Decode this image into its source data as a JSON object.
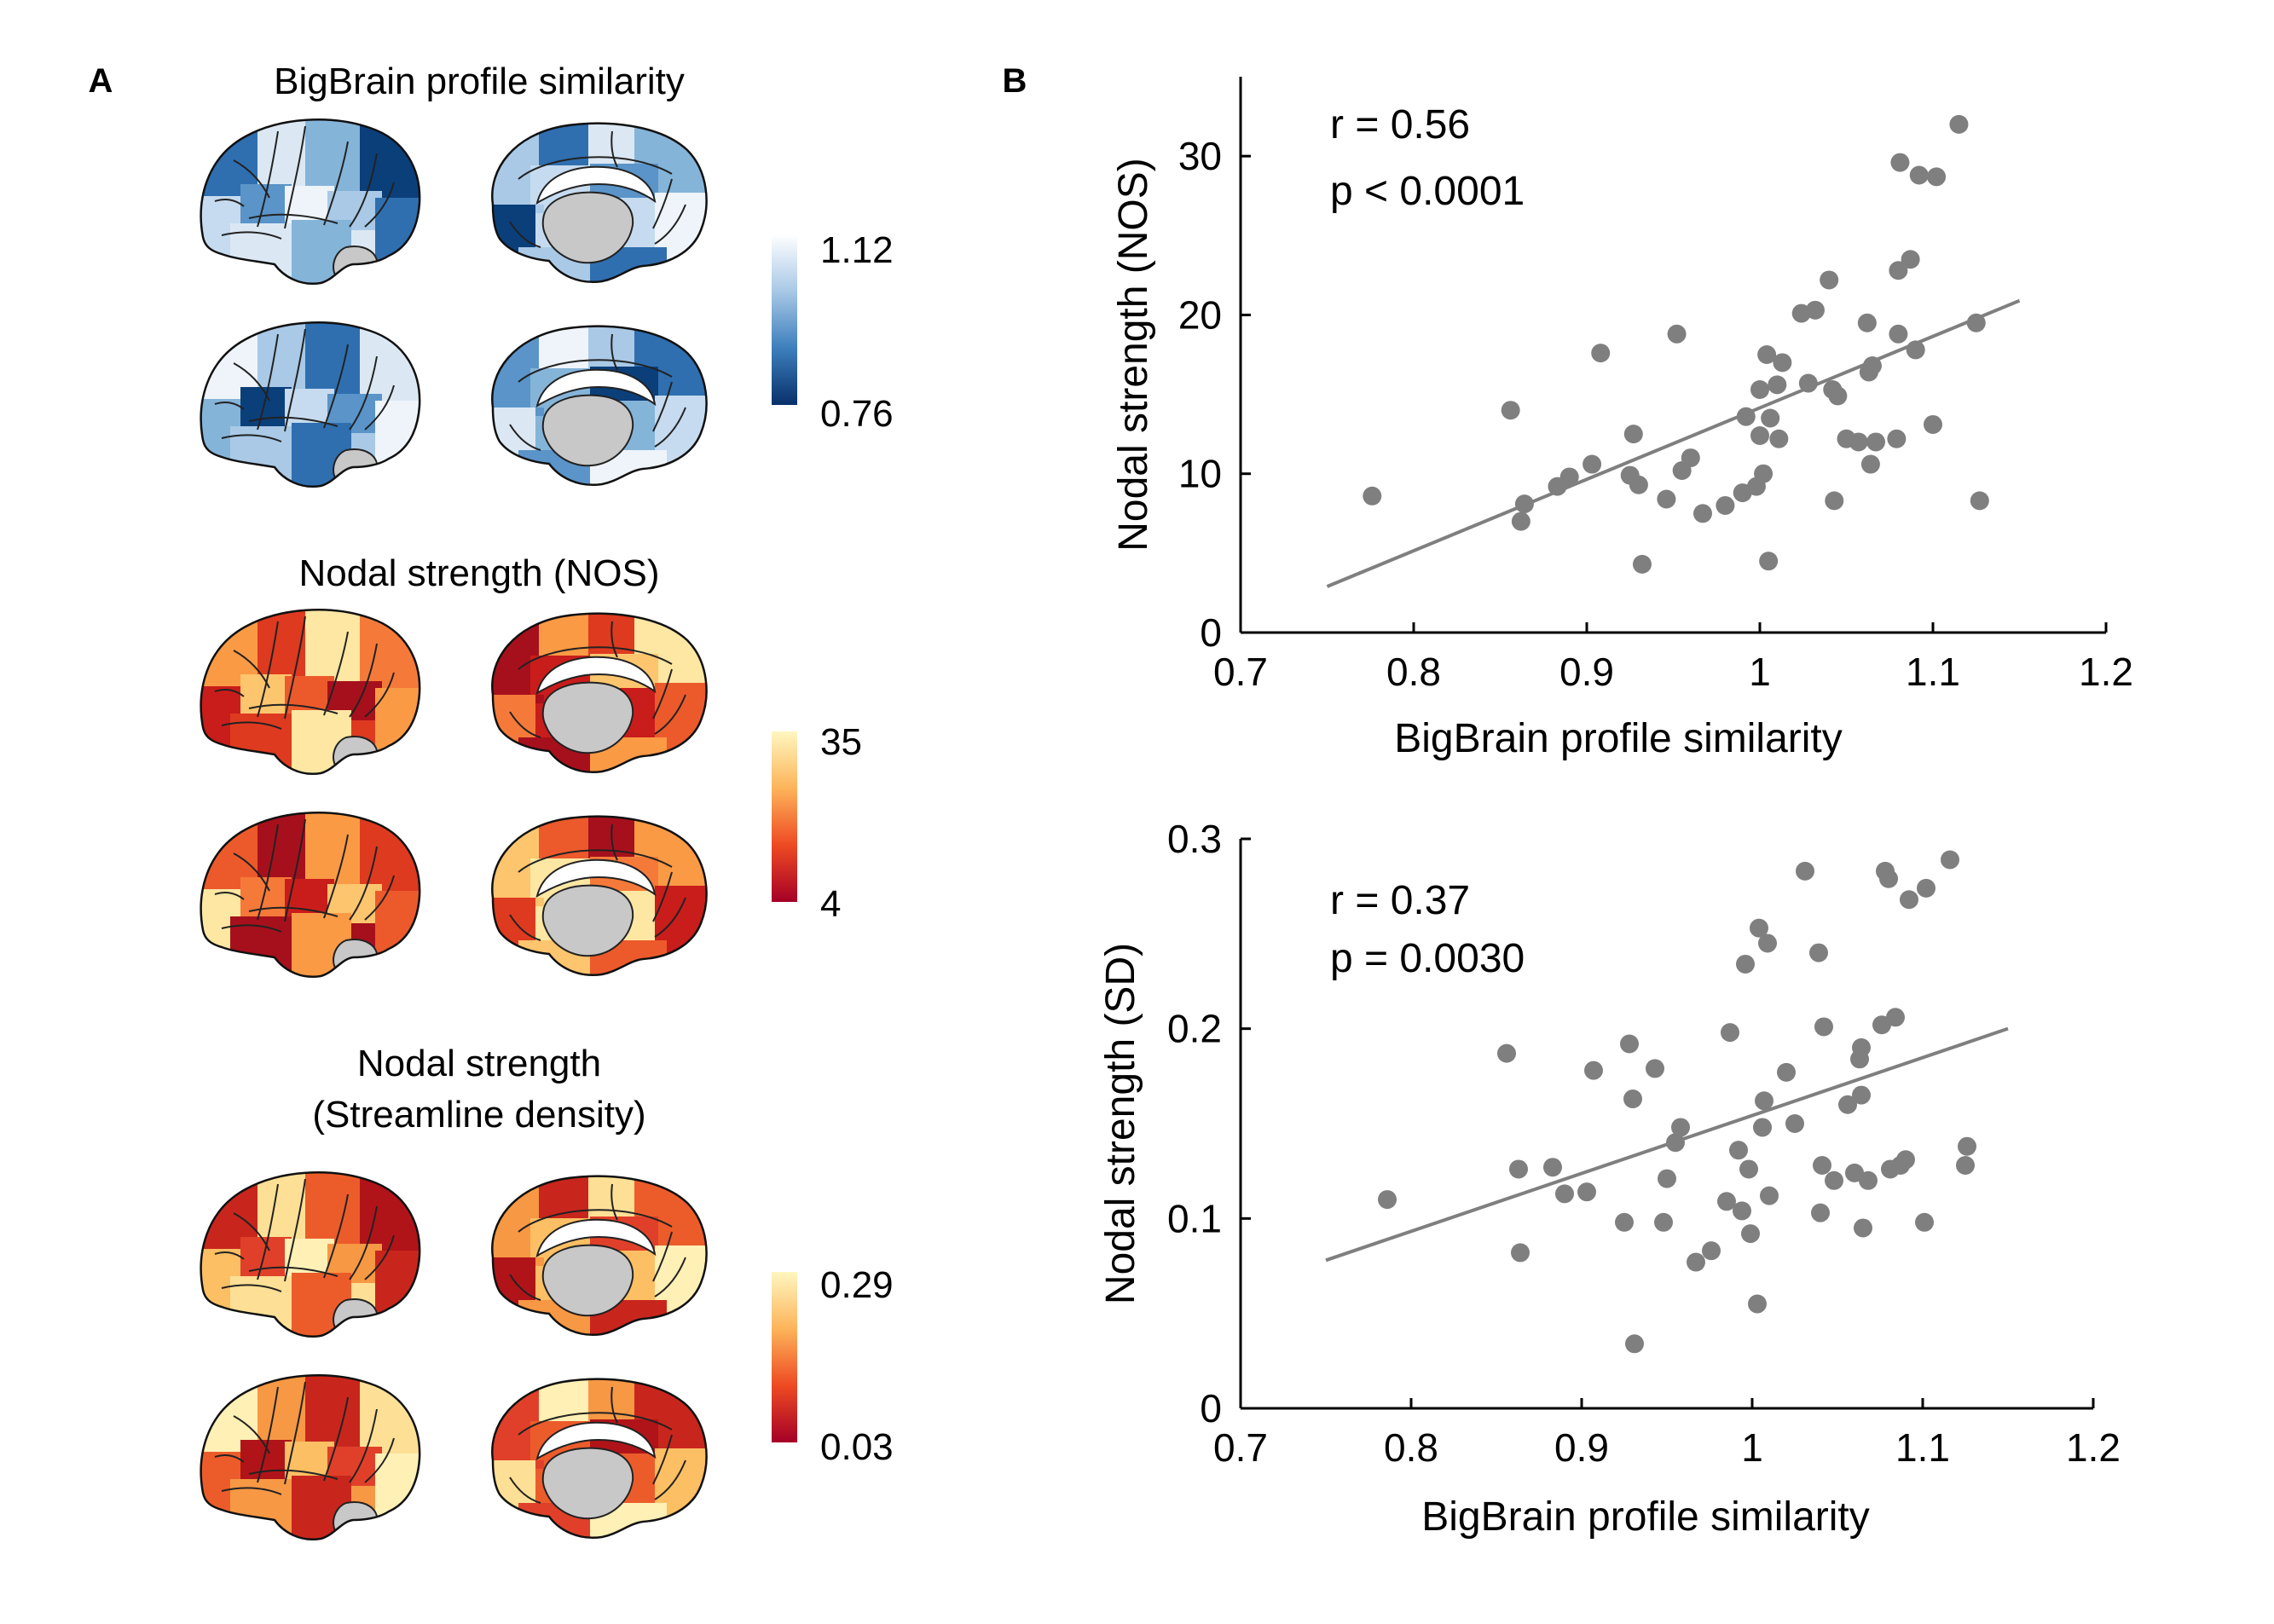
{
  "panel_a": {
    "letter": "A",
    "maps": [
      {
        "title_lines": [
          "BigBrain profile similarity"
        ],
        "colorbar": {
          "max_label": "1.12",
          "min_label": "0.76",
          "colors": [
            "#ffffff",
            "#a8c8e6",
            "#3d7fbd",
            "#08306b"
          ]
        },
        "patch_palette": [
          "#eef4fa",
          "#dbe8f4",
          "#c6dbef",
          "#a9c9e6",
          "#85b4d9",
          "#5a94c9",
          "#2f6fb0",
          "#0b3f7a"
        ]
      },
      {
        "title_lines": [
          "Nodal strength (NOS)"
        ],
        "colorbar": {
          "max_label": "35",
          "min_label": "4",
          "colors": [
            "#fff7c0",
            "#fdb45a",
            "#ee4a22",
            "#a50026"
          ]
        },
        "patch_palette": [
          "#fde7a3",
          "#fdc56e",
          "#fb9a45",
          "#f57a3a",
          "#ec5a2c",
          "#de3a20",
          "#c91d1b",
          "#a6101c"
        ]
      },
      {
        "title_lines": [
          "Nodal strength",
          "(Streamline density)"
        ],
        "colorbar": {
          "max_label": "0.29",
          "min_label": "0.03",
          "colors": [
            "#fff7c0",
            "#fdb45a",
            "#ee4a22",
            "#a50026"
          ]
        },
        "patch_palette": [
          "#fff0b5",
          "#fde095",
          "#fdbf63",
          "#f79844",
          "#ec5c2b",
          "#e0402a",
          "#c8261d",
          "#b01419"
        ]
      }
    ]
  },
  "panel_b": {
    "letter": "B"
  },
  "chart_data": [
    {
      "type": "scatter",
      "xlabel": "BigBrain profile similarity",
      "ylabel": "Nodal strength (NOS)",
      "xlim": [
        0.7,
        1.2
      ],
      "ylim": [
        0,
        35
      ],
      "x_ticks": [
        0.7,
        0.8,
        0.9,
        1,
        1.1,
        1.2
      ],
      "x_tick_labels": [
        "0.7",
        "0.8",
        "0.9",
        "1",
        "1.1",
        "1.2"
      ],
      "y_ticks": [
        0,
        10,
        20,
        30
      ],
      "y_tick_labels": [
        "0",
        "10",
        "20",
        "30"
      ],
      "annotation_lines": [
        "r = 0.56",
        "p < 0.0001"
      ],
      "point_color": "#7f7f7f",
      "line_color": "#7f7f7f",
      "fit_line": {
        "x": [
          0.75,
          1.15
        ],
        "y": [
          2.9,
          20.9
        ]
      },
      "points": [
        {
          "x": 0.776,
          "y": 8.6
        },
        {
          "x": 0.856,
          "y": 14.0
        },
        {
          "x": 0.862,
          "y": 7.0
        },
        {
          "x": 0.864,
          "y": 8.1
        },
        {
          "x": 0.883,
          "y": 9.2
        },
        {
          "x": 0.89,
          "y": 9.8
        },
        {
          "x": 0.903,
          "y": 10.6
        },
        {
          "x": 0.908,
          "y": 17.6
        },
        {
          "x": 0.925,
          "y": 9.9
        },
        {
          "x": 0.927,
          "y": 12.5
        },
        {
          "x": 0.93,
          "y": 9.3
        },
        {
          "x": 0.932,
          "y": 4.3
        },
        {
          "x": 0.946,
          "y": 8.4
        },
        {
          "x": 0.952,
          "y": 18.8
        },
        {
          "x": 0.955,
          "y": 10.2
        },
        {
          "x": 0.96,
          "y": 11.0
        },
        {
          "x": 0.967,
          "y": 7.5
        },
        {
          "x": 0.98,
          "y": 8.0
        },
        {
          "x": 0.99,
          "y": 8.8
        },
        {
          "x": 0.992,
          "y": 13.6
        },
        {
          "x": 0.998,
          "y": 9.2
        },
        {
          "x": 1.0,
          "y": 12.4
        },
        {
          "x": 1.0,
          "y": 15.3
        },
        {
          "x": 1.002,
          "y": 10.0
        },
        {
          "x": 1.004,
          "y": 17.5
        },
        {
          "x": 1.005,
          "y": 4.5
        },
        {
          "x": 1.006,
          "y": 13.5
        },
        {
          "x": 1.01,
          "y": 15.6
        },
        {
          "x": 1.011,
          "y": 12.2
        },
        {
          "x": 1.013,
          "y": 17.0
        },
        {
          "x": 1.024,
          "y": 20.1
        },
        {
          "x": 1.028,
          "y": 15.7
        },
        {
          "x": 1.032,
          "y": 20.3
        },
        {
          "x": 1.04,
          "y": 22.2
        },
        {
          "x": 1.042,
          "y": 15.3
        },
        {
          "x": 1.043,
          "y": 8.3
        },
        {
          "x": 1.045,
          "y": 14.9
        },
        {
          "x": 1.05,
          "y": 12.2
        },
        {
          "x": 1.057,
          "y": 12.0
        },
        {
          "x": 1.062,
          "y": 19.5
        },
        {
          "x": 1.063,
          "y": 16.4
        },
        {
          "x": 1.064,
          "y": 10.6
        },
        {
          "x": 1.065,
          "y": 16.8
        },
        {
          "x": 1.067,
          "y": 12.0
        },
        {
          "x": 1.079,
          "y": 12.2
        },
        {
          "x": 1.08,
          "y": 22.8
        },
        {
          "x": 1.08,
          "y": 18.8
        },
        {
          "x": 1.081,
          "y": 29.6
        },
        {
          "x": 1.087,
          "y": 23.5
        },
        {
          "x": 1.09,
          "y": 17.8
        },
        {
          "x": 1.092,
          "y": 28.8
        },
        {
          "x": 1.1,
          "y": 13.1
        },
        {
          "x": 1.102,
          "y": 28.7
        },
        {
          "x": 1.115,
          "y": 32.0
        },
        {
          "x": 1.125,
          "y": 19.5
        },
        {
          "x": 1.127,
          "y": 8.3
        }
      ]
    },
    {
      "type": "scatter",
      "xlabel": "BigBrain profile similarity",
      "ylabel": "Nodal strength (SD)",
      "xlim": [
        0.7,
        1.2
      ],
      "ylim": [
        0,
        0.3
      ],
      "x_ticks": [
        0.7,
        0.8,
        0.9,
        1,
        1.1,
        1.2
      ],
      "x_tick_labels": [
        "0.7",
        "0.8",
        "0.9",
        "1",
        "1.1",
        "1.2"
      ],
      "y_ticks": [
        0,
        0.1,
        0.2,
        0.3
      ],
      "y_tick_labels": [
        "0",
        "0.1",
        "0.2",
        "0.3"
      ],
      "annotation_lines": [
        "r = 0.37",
        "p = 0.0030"
      ],
      "point_color": "#7f7f7f",
      "line_color": "#7f7f7f",
      "fit_line": {
        "x": [
          0.75,
          1.15
        ],
        "y": [
          0.078,
          0.2
        ]
      },
      "points": [
        {
          "x": 0.786,
          "y": 0.11
        },
        {
          "x": 0.856,
          "y": 0.187
        },
        {
          "x": 0.863,
          "y": 0.126
        },
        {
          "x": 0.864,
          "y": 0.082
        },
        {
          "x": 0.883,
          "y": 0.127
        },
        {
          "x": 0.89,
          "y": 0.113
        },
        {
          "x": 0.903,
          "y": 0.114
        },
        {
          "x": 0.907,
          "y": 0.178
        },
        {
          "x": 0.925,
          "y": 0.098
        },
        {
          "x": 0.928,
          "y": 0.192
        },
        {
          "x": 0.93,
          "y": 0.163
        },
        {
          "x": 0.931,
          "y": 0.034
        },
        {
          "x": 0.943,
          "y": 0.179
        },
        {
          "x": 0.948,
          "y": 0.098
        },
        {
          "x": 0.95,
          "y": 0.121
        },
        {
          "x": 0.955,
          "y": 0.14
        },
        {
          "x": 0.958,
          "y": 0.148
        },
        {
          "x": 0.967,
          "y": 0.077
        },
        {
          "x": 0.976,
          "y": 0.083
        },
        {
          "x": 0.985,
          "y": 0.109
        },
        {
          "x": 0.987,
          "y": 0.198
        },
        {
          "x": 0.992,
          "y": 0.136
        },
        {
          "x": 0.994,
          "y": 0.104
        },
        {
          "x": 0.996,
          "y": 0.234
        },
        {
          "x": 0.998,
          "y": 0.126
        },
        {
          "x": 0.999,
          "y": 0.092
        },
        {
          "x": 1.003,
          "y": 0.055
        },
        {
          "x": 1.004,
          "y": 0.253
        },
        {
          "x": 1.006,
          "y": 0.148
        },
        {
          "x": 1.007,
          "y": 0.162
        },
        {
          "x": 1.009,
          "y": 0.245
        },
        {
          "x": 1.01,
          "y": 0.112
        },
        {
          "x": 1.02,
          "y": 0.177
        },
        {
          "x": 1.025,
          "y": 0.15
        },
        {
          "x": 1.031,
          "y": 0.283
        },
        {
          "x": 1.039,
          "y": 0.24
        },
        {
          "x": 1.04,
          "y": 0.103
        },
        {
          "x": 1.041,
          "y": 0.128
        },
        {
          "x": 1.042,
          "y": 0.201
        },
        {
          "x": 1.048,
          "y": 0.12
        },
        {
          "x": 1.056,
          "y": 0.16
        },
        {
          "x": 1.06,
          "y": 0.124
        },
        {
          "x": 1.063,
          "y": 0.184
        },
        {
          "x": 1.064,
          "y": 0.19
        },
        {
          "x": 1.064,
          "y": 0.165
        },
        {
          "x": 1.065,
          "y": 0.095
        },
        {
          "x": 1.068,
          "y": 0.12
        },
        {
          "x": 1.076,
          "y": 0.202
        },
        {
          "x": 1.078,
          "y": 0.283
        },
        {
          "x": 1.08,
          "y": 0.279
        },
        {
          "x": 1.081,
          "y": 0.126
        },
        {
          "x": 1.084,
          "y": 0.206
        },
        {
          "x": 1.087,
          "y": 0.128
        },
        {
          "x": 1.09,
          "y": 0.131
        },
        {
          "x": 1.092,
          "y": 0.268
        },
        {
          "x": 1.101,
          "y": 0.098
        },
        {
          "x": 1.102,
          "y": 0.274
        },
        {
          "x": 1.116,
          "y": 0.289
        },
        {
          "x": 1.125,
          "y": 0.128
        },
        {
          "x": 1.126,
          "y": 0.138
        }
      ]
    }
  ]
}
